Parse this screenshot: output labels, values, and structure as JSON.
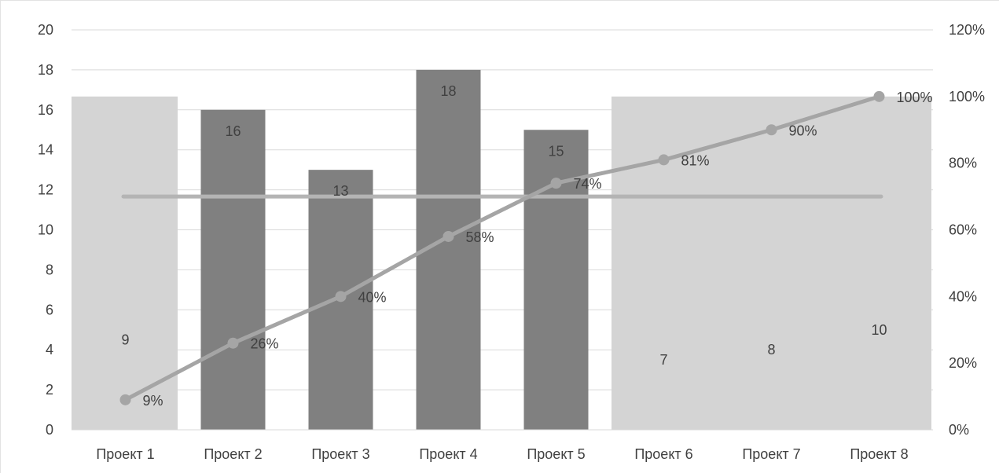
{
  "chart_data": {
    "type": "bar",
    "categories": [
      "Проект 1",
      "Проект 2",
      "Проект 3",
      "Проект 4",
      "Проект 5",
      "Проект 6",
      "Проект 7",
      "Проект 8"
    ],
    "series": [
      {
        "kind": "bar",
        "values": [
          9,
          16,
          13,
          18,
          15,
          7,
          8,
          10
        ],
        "value_labels": [
          "9",
          "16",
          "13",
          "18",
          "15",
          "7",
          "8",
          "10"
        ]
      },
      {
        "kind": "line",
        "axis": "secondary",
        "values": [
          9,
          26,
          40,
          58,
          74,
          81,
          90,
          100
        ],
        "value_labels": [
          "9%",
          "26%",
          "40%",
          "58%",
          "74%",
          "81%",
          "90%",
          "100%"
        ]
      }
    ],
    "highlight_bands": [
      {
        "from": "Проект 1",
        "to": "Проект 1",
        "level": 100
      },
      {
        "from": "Проект 6",
        "to": "Проект 8",
        "level": 100
      }
    ],
    "reference_line": {
      "axis": "secondary",
      "value": 70
    },
    "y_left": {
      "min": 0,
      "max": 20,
      "step": 2,
      "ticks": [
        "0",
        "2",
        "4",
        "6",
        "8",
        "10",
        "12",
        "14",
        "16",
        "18",
        "20"
      ]
    },
    "y_right": {
      "min": 0,
      "max": 120,
      "step": 20,
      "ticks": [
        "0%",
        "20%",
        "40%",
        "60%",
        "80%",
        "100%",
        "120%"
      ]
    },
    "grid": true,
    "legend": "none",
    "colors": {
      "bar": "#808080",
      "band": "#d4d4d4",
      "line": "#a5a5a5",
      "reference": "#b4b4b4",
      "grid": "#d9d9d9",
      "text": "#404040"
    }
  }
}
